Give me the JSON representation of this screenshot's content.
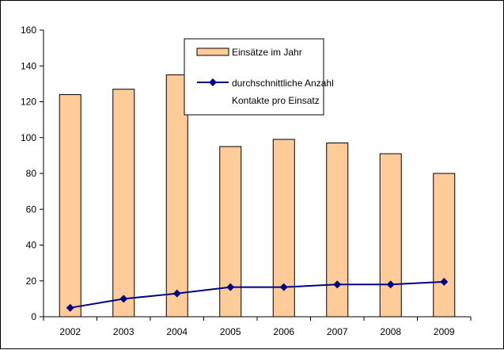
{
  "chart_data": {
    "type": "bar",
    "categories": [
      "2002",
      "2003",
      "2004",
      "2005",
      "2006",
      "2007",
      "2008",
      "2009"
    ],
    "series": [
      {
        "name": "Einsätze im Jahr",
        "type": "bar",
        "color": "#FFCC99",
        "values": [
          124,
          127,
          135,
          95,
          99,
          97,
          91,
          80
        ]
      },
      {
        "name_lines": [
          "durchschnittliche Anzahl",
          "Kontakte pro Einsatz"
        ],
        "type": "line",
        "color": "#000080",
        "marker": "diamond",
        "values": [
          5,
          10,
          13,
          16.5,
          16.5,
          18,
          18,
          19.5
        ]
      }
    ],
    "y_ticks": [
      "0",
      "20",
      "40",
      "60",
      "80",
      "100",
      "120",
      "140",
      "160"
    ],
    "ylim": [
      0,
      160
    ],
    "grid": false,
    "legend_position": "top-center"
  }
}
